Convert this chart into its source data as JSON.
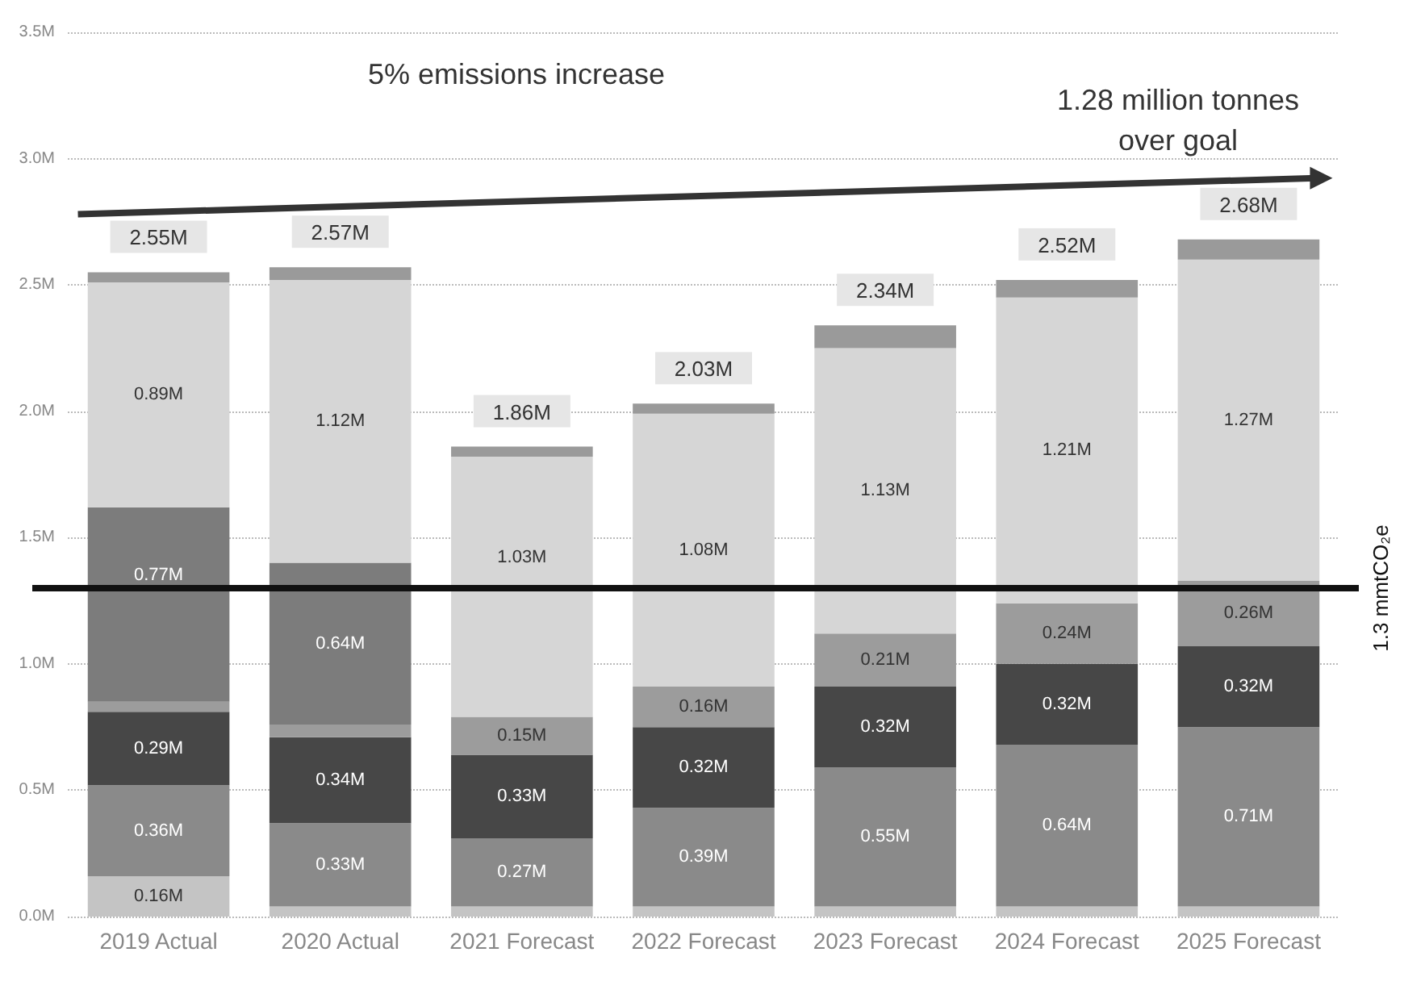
{
  "chart_data": {
    "type": "bar",
    "stacked": true,
    "categories": [
      "2019 Actual",
      "2020 Actual",
      "2021 Forecast",
      "2022 Forecast",
      "2023 Forecast",
      "2024 Forecast",
      "2025 Forecast"
    ],
    "series": [
      {
        "color": "#c4c4c4",
        "values": [
          0.16,
          0.04,
          0.04,
          0.04,
          0.04,
          0.04,
          0.04
        ],
        "value_labels": [
          "0.16M",
          null,
          null,
          null,
          null,
          null,
          null
        ]
      },
      {
        "color": "#8a8a8a",
        "values": [
          0.36,
          0.33,
          0.27,
          0.39,
          0.55,
          0.64,
          0.71
        ],
        "value_labels": [
          "0.36M",
          "0.33M",
          "0.27M",
          "0.39M",
          "0.55M",
          "0.64M",
          "0.71M"
        ]
      },
      {
        "color": "#474747",
        "values": [
          0.29,
          0.34,
          0.33,
          0.32,
          0.32,
          0.32,
          0.32
        ],
        "value_labels": [
          "0.29M",
          "0.34M",
          "0.33M",
          "0.32M",
          "0.32M",
          "0.32M",
          "0.32M"
        ]
      },
      {
        "color": "#9c9c9c",
        "values": [
          0.04,
          0.05,
          0.15,
          0.16,
          0.21,
          0.24,
          0.26
        ],
        "value_labels": [
          null,
          null,
          "0.15M",
          "0.16M",
          "0.21M",
          "0.24M",
          "0.26M"
        ]
      },
      {
        "color": "#7c7c7c",
        "values": [
          0.77,
          0.64,
          0,
          0,
          0,
          0,
          0
        ],
        "value_labels": [
          "0.77M",
          "0.64M",
          null,
          null,
          null,
          null,
          null
        ]
      },
      {
        "color": "#d6d6d6",
        "values": [
          0.89,
          1.12,
          1.03,
          1.08,
          1.13,
          1.21,
          1.27
        ],
        "value_labels": [
          "0.89M",
          "1.12M",
          "1.03M",
          "1.08M",
          "1.13M",
          "1.21M",
          "1.27M"
        ]
      },
      {
        "color": "#9a9a9a",
        "values": [
          0.04,
          0.05,
          0.04,
          0.04,
          0.09,
          0.07,
          0.08
        ]
      }
    ],
    "totals": [
      "2.55M",
      "2.57M",
      "1.86M",
      "2.03M",
      "2.34M",
      "2.52M",
      "2.68M"
    ],
    "ylim": [
      0,
      3.5
    ],
    "yticks": [
      {
        "value": 0,
        "label": "0.0M"
      },
      {
        "value": 0.5,
        "label": "0.5M"
      },
      {
        "value": 1,
        "label": "1.0M"
      },
      {
        "value": 1.5,
        "label": "1.5M"
      },
      {
        "value": 2,
        "label": "2.0M"
      },
      {
        "value": 2.5,
        "label": "2.5M"
      },
      {
        "value": 3,
        "label": "3.0M"
      },
      {
        "value": 3.5,
        "label": "3.5M"
      }
    ],
    "grid": "y",
    "ref_lines": [
      {
        "axis": "y",
        "value": 1.3,
        "label": "1.3 mmtCO₂e",
        "color": "#111111"
      }
    ],
    "annotations": [
      "5% emissions increase",
      "1.28 million tonnes over goal"
    ]
  }
}
